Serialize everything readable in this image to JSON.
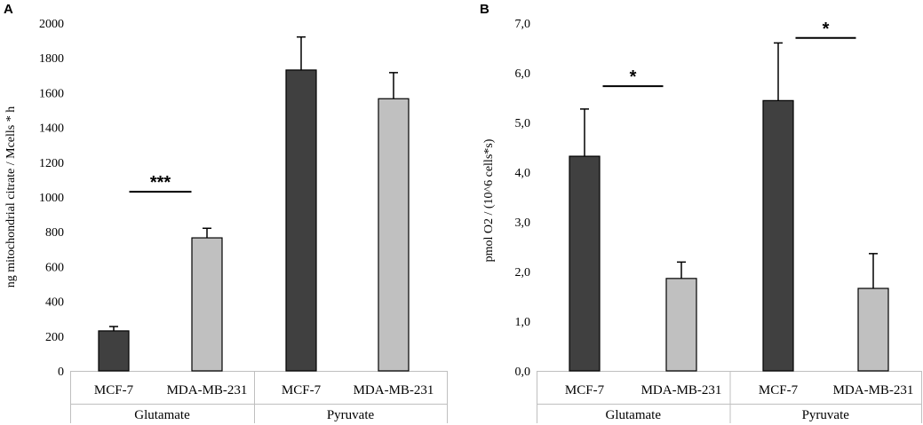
{
  "chart_data": [
    {
      "type": "bar",
      "panel_label": "A",
      "ylabel": "ng mitochondrial citrate / Mcells * h",
      "ylim": [
        0,
        2000
      ],
      "yticks": [
        "0",
        "200",
        "400",
        "600",
        "800",
        "1000",
        "1200",
        "1400",
        "1600",
        "1800",
        "2000"
      ],
      "groups": [
        {
          "name": "Glutamate",
          "categories": [
            "MCF-7",
            "MDA-MB-231"
          ]
        },
        {
          "name": "Pyruvate",
          "categories": [
            "MCF-7",
            "MDA-MB-231"
          ]
        }
      ],
      "series": [
        {
          "name": "MCF-7",
          "color": "#404040",
          "values": [
            230,
            1730
          ],
          "errors": [
            25,
            190
          ]
        },
        {
          "name": "MDA-MB-231",
          "color": "#c0c0c0",
          "values": [
            765,
            1565
          ],
          "errors": [
            55,
            150
          ]
        }
      ],
      "significance": [
        {
          "label": "***",
          "group": 0,
          "at_value": 1030
        }
      ]
    },
    {
      "type": "bar",
      "panel_label": "B",
      "ylabel": "pmol O2  / (10^6 cells*s)",
      "ylim": [
        0,
        7
      ],
      "yticks": [
        "0,0",
        "1,0",
        "2,0",
        "3,0",
        "4,0",
        "5,0",
        "6,0",
        "7,0"
      ],
      "groups": [
        {
          "name": "Glutamate",
          "categories": [
            "MCF-7",
            "MDA-MB-231"
          ]
        },
        {
          "name": "Pyruvate",
          "categories": [
            "MCF-7",
            "MDA-MB-231"
          ]
        }
      ],
      "series": [
        {
          "name": "MCF-7",
          "color": "#404040",
          "values": [
            4.32,
            5.44
          ],
          "errors": [
            0.95,
            1.16
          ]
        },
        {
          "name": "MDA-MB-231",
          "color": "#c0c0c0",
          "values": [
            1.86,
            1.66
          ],
          "errors": [
            0.33,
            0.7
          ]
        }
      ],
      "significance": [
        {
          "label": "*",
          "group": 0,
          "at_value": 5.73
        },
        {
          "label": "*",
          "group": 1,
          "at_value": 6.7
        }
      ]
    }
  ]
}
